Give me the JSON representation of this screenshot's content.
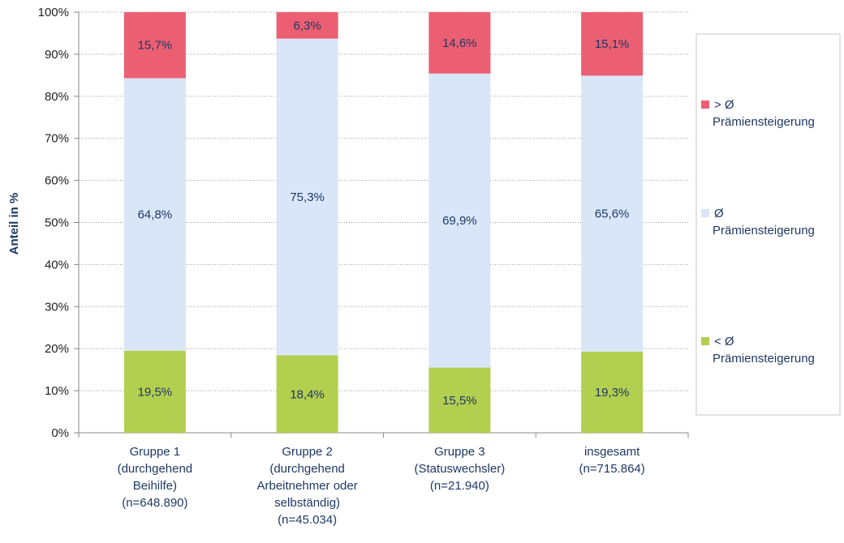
{
  "chart_data": {
    "type": "bar",
    "stacked": true,
    "ylabel": "Anteil in %",
    "ylim": [
      0,
      100
    ],
    "yticks": [
      "0%",
      "10%",
      "20%",
      "30%",
      "40%",
      "50%",
      "60%",
      "70%",
      "80%",
      "90%",
      "100%"
    ],
    "grid": true,
    "legend_position": "right",
    "categories": [
      [
        "Gruppe 1",
        "(durchgehend",
        "Beihilfe)",
        "(n=648.890)"
      ],
      [
        "Gruppe 2",
        "(durchgehend",
        "Arbeitnehmer oder",
        "selbständig)",
        "(n=45.034)"
      ],
      [
        "Gruppe 3",
        "(Statuswechsler)",
        "(n=21.940)"
      ],
      [
        "insgesamt",
        "(n=715.864)"
      ]
    ],
    "series": [
      {
        "name": "< Ø Prämiensteigerung",
        "legend_lines": [
          "< Ø",
          "Prämiensteigerung"
        ],
        "color": "#b3cf4f",
        "values": [
          19.5,
          18.4,
          15.5,
          19.3
        ],
        "labels": [
          "19,5%",
          "18,4%",
          "15,5%",
          "19,3%"
        ]
      },
      {
        "name": "Ø Prämiensteigerung",
        "legend_lines": [
          "Ø",
          "Prämiensteigerung"
        ],
        "color": "#d9e6f8",
        "values": [
          64.8,
          75.3,
          69.9,
          65.6
        ],
        "labels": [
          "64,8%",
          "75,3%",
          "69,9%",
          "65,6%"
        ]
      },
      {
        "name": "> Ø Prämiensteigerung",
        "legend_lines": [
          "> Ø",
          "Prämiensteigerung"
        ],
        "color": "#ec5f73",
        "values": [
          15.7,
          6.3,
          14.6,
          15.1
        ],
        "labels": [
          "15,7%",
          "6,3%",
          "14,6%",
          "15,1%"
        ]
      }
    ]
  }
}
